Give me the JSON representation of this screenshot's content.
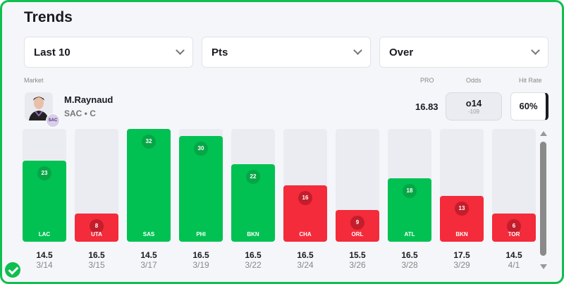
{
  "title": "Trends",
  "filters": [
    "Last 10",
    "Pts",
    "Over"
  ],
  "labels": {
    "market": "Market",
    "pro": "PRO",
    "odds": "Odds",
    "hit_rate": "Hit Rate"
  },
  "player": {
    "name": "M.Raynaud",
    "team_pos": "SAC • C",
    "team_logo": "KINGS"
  },
  "pro_value": "16.83",
  "odds": {
    "line": "o14",
    "price": "-109"
  },
  "hit_rate": "60%",
  "colors": {
    "hit": "#00c152",
    "miss": "#f42b3a",
    "hit_dot": "#06a646",
    "miss_dot": "#c41d2c"
  },
  "max_value": 32,
  "games": [
    {
      "team": "LAC",
      "value": 23,
      "line": "14.5",
      "date": "3/14"
    },
    {
      "team": "UTA",
      "value": 8,
      "line": "16.5",
      "date": "3/15"
    },
    {
      "team": "SAS",
      "value": 32,
      "line": "14.5",
      "date": "3/17"
    },
    {
      "team": "PHI",
      "value": 30,
      "line": "16.5",
      "date": "3/19"
    },
    {
      "team": "BKN",
      "value": 22,
      "line": "16.5",
      "date": "3/22"
    },
    {
      "team": "CHA",
      "value": 16,
      "line": "16.5",
      "date": "3/24"
    },
    {
      "team": "ORL",
      "value": 9,
      "line": "15.5",
      "date": "3/26"
    },
    {
      "team": "ATL",
      "value": 18,
      "line": "16.5",
      "date": "3/28"
    },
    {
      "team": "BKN",
      "value": 13,
      "line": "17.5",
      "date": "3/29"
    },
    {
      "team": "TOR",
      "value": 6,
      "line": "14.5",
      "date": "4/1"
    }
  ]
}
